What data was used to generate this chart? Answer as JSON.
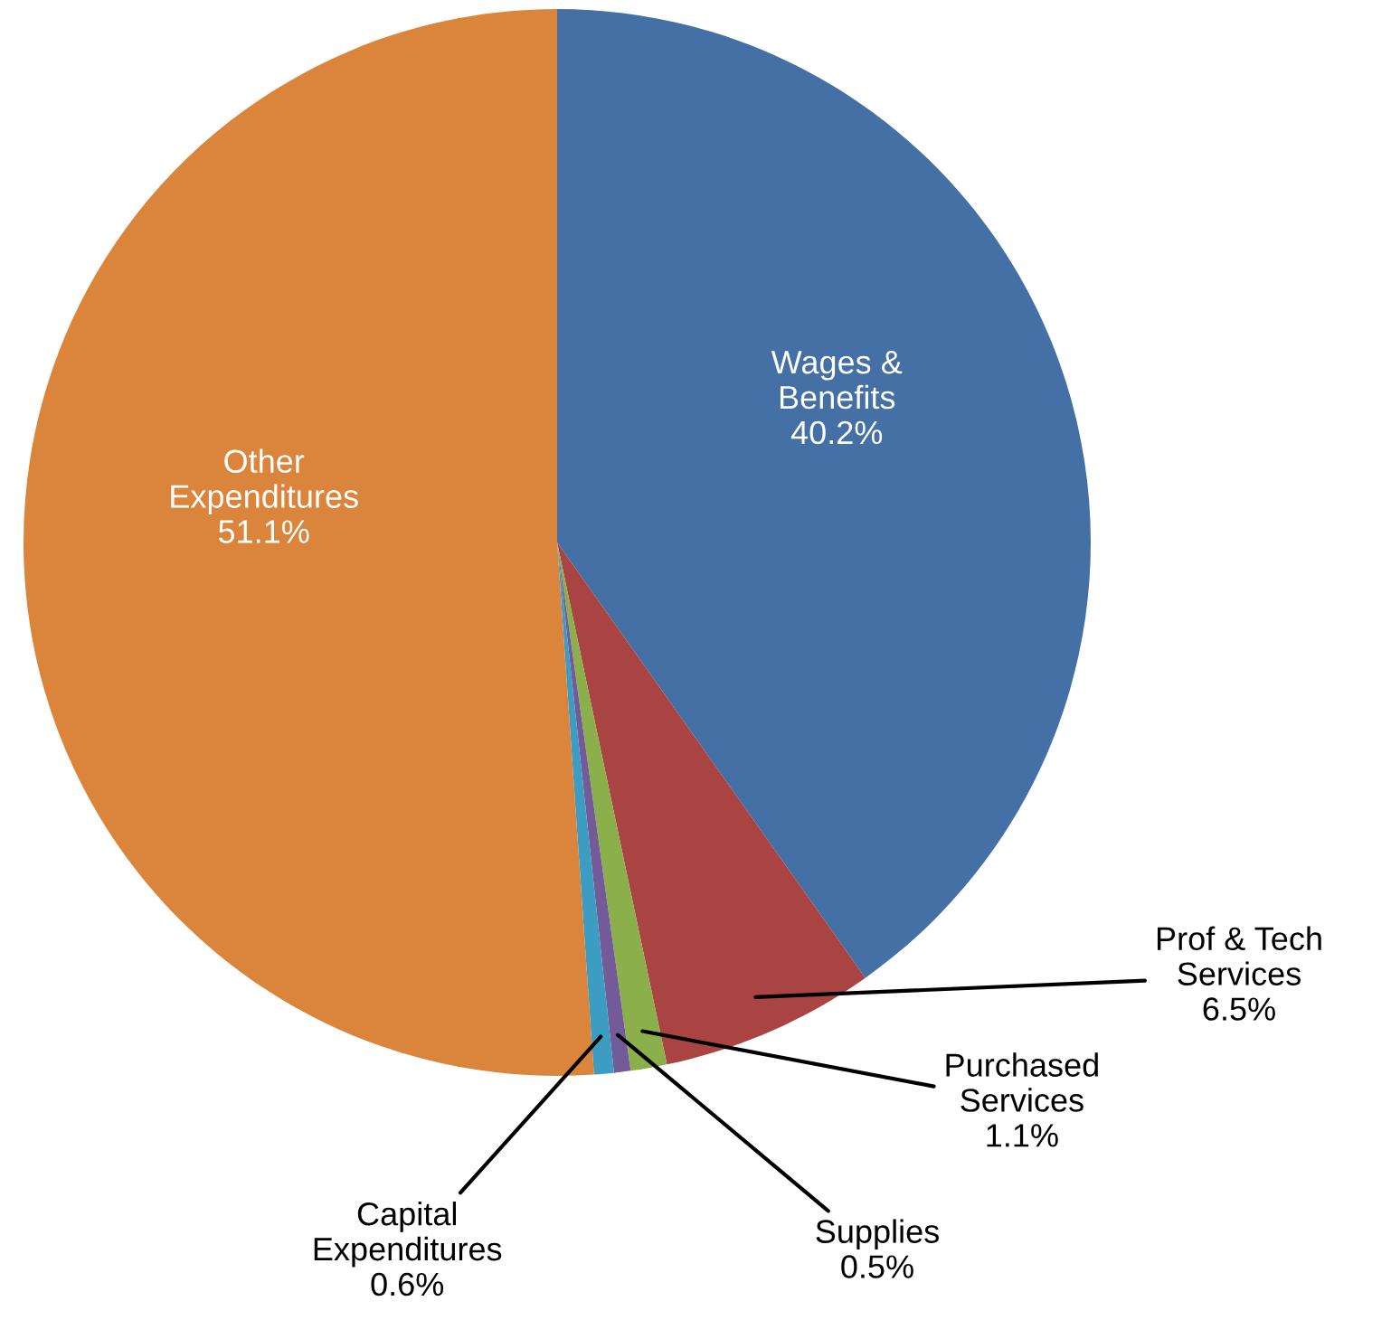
{
  "chart_data": {
    "type": "pie",
    "categories": [
      "Wages &\nBenefits",
      "Prof & Tech\nServices",
      "Purchased\nServices",
      "Supplies",
      "Capital\nExpenditures",
      "Other\nExpenditures"
    ],
    "values": [
      40.2,
      6.5,
      1.1,
      0.5,
      0.6,
      51.1
    ],
    "colors": [
      "#4570a5",
      "#aa4443",
      "#8bb04b",
      "#735a98",
      "#3d9cc1",
      "#da843c"
    ],
    "value_labels": [
      "40.2%",
      "6.5%",
      "1.1%",
      "0.5%",
      "0.6%",
      "51.1%"
    ],
    "legend": false
  }
}
